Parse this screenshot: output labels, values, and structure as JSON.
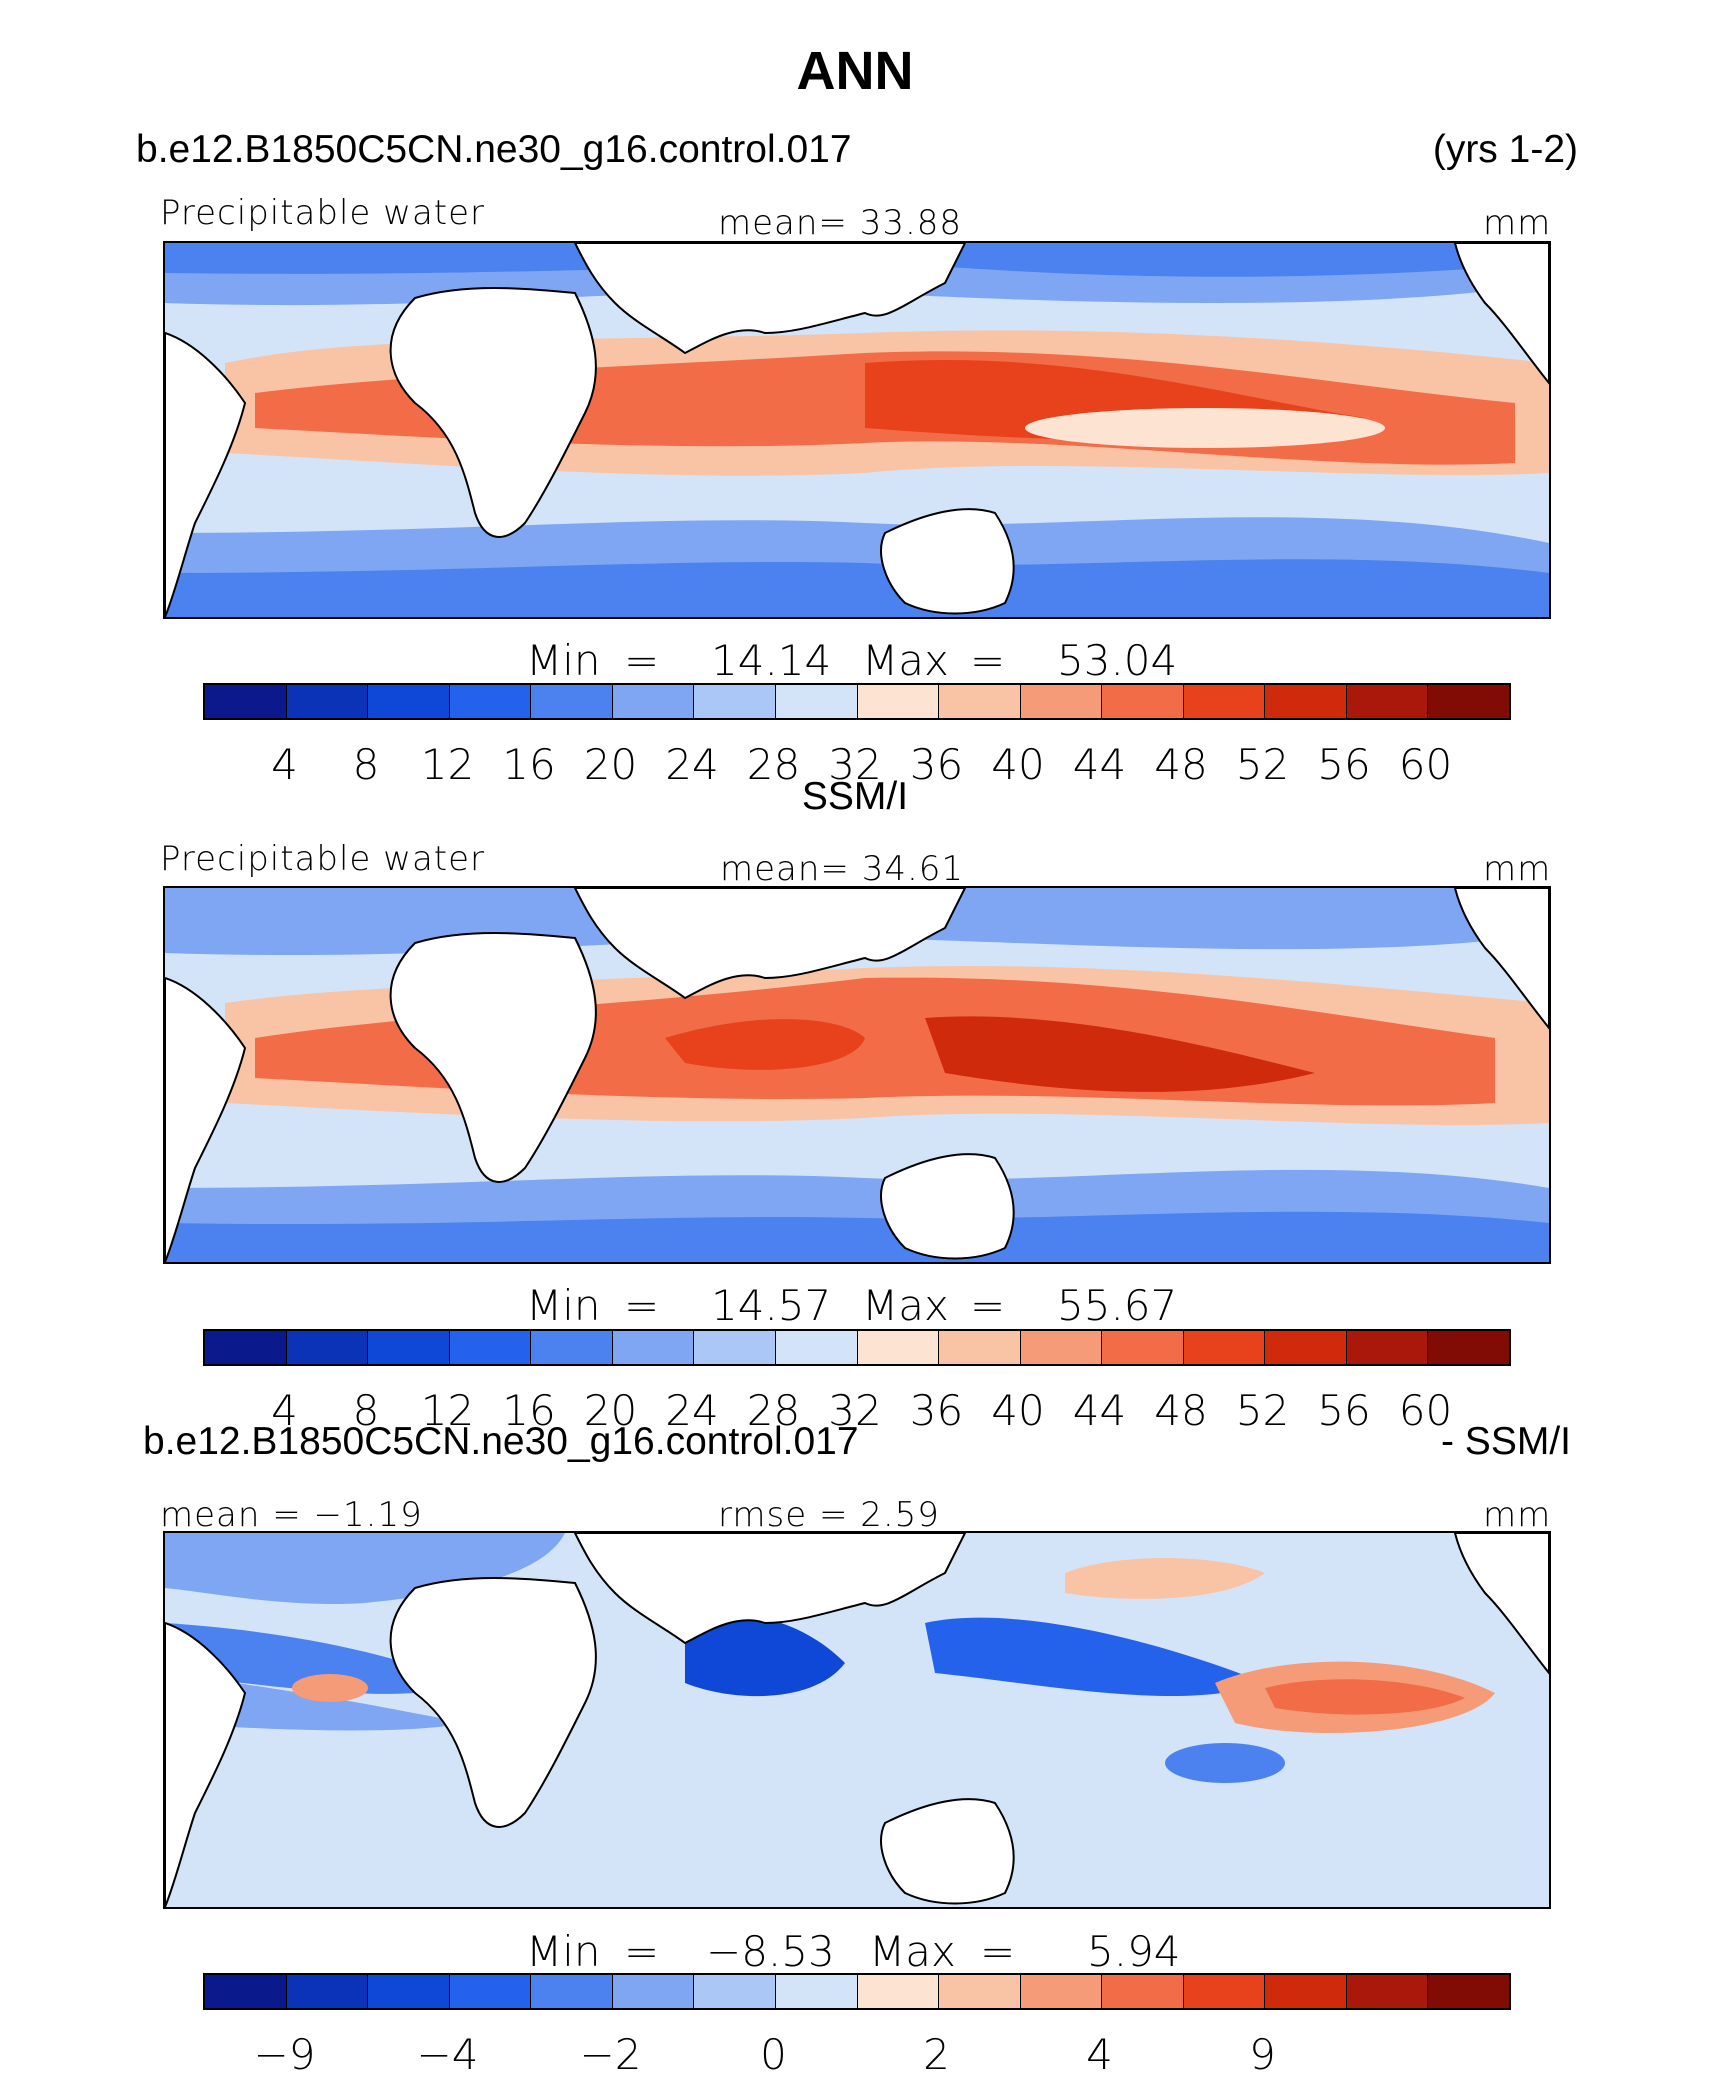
{
  "title": "ANN",
  "panels": [
    {
      "case_name": "b.e12.B1850C5CN.ne30_g16.control.017",
      "years": "(yrs 1-2)",
      "left_label": "Precipitable water",
      "center_label": "mean=  33.88",
      "units": "mm",
      "min_label": "Min",
      "min_value": "14.14",
      "max_label": "Max",
      "max_value": "53.04",
      "min_value_num": 14.14,
      "max_value_num": 53.04,
      "colorbar_ticks": [
        "4",
        "8",
        "12",
        "16",
        "20",
        "24",
        "28",
        "32",
        "36",
        "40",
        "44",
        "48",
        "52",
        "56",
        "60"
      ]
    },
    {
      "case_name": "SSM/I",
      "left_label": "Precipitable water",
      "center_label": "mean=  34.61",
      "units": "mm",
      "min_label": "Min",
      "min_value": "14.57",
      "max_label": "Max",
      "max_value": "55.67",
      "min_value_num": 14.57,
      "max_value_num": 55.67,
      "colorbar_ticks": [
        "4",
        "8",
        "12",
        "16",
        "20",
        "24",
        "28",
        "32",
        "36",
        "40",
        "44",
        "48",
        "52",
        "56",
        "60"
      ]
    },
    {
      "case_name": "b.e12.B1850C5CN.ne30_g16.control.017",
      "case_suffix": "- SSM/I",
      "left_label": "mean =  −1.19",
      "center_label": "rmse =   2.59",
      "units": "mm",
      "min_label": "Min",
      "min_value": "−8.53",
      "max_label": "Max",
      "max_value": "5.94",
      "min_value_num": -8.53,
      "max_value_num": 5.94,
      "colorbar_ticks": [
        "−9",
        "",
        "−4",
        "",
        "−2",
        "",
        "0",
        "",
        "2",
        "",
        "4",
        "",
        "9"
      ]
    }
  ],
  "colors": {
    "palette": [
      "#0a1a8c",
      "#0b33b8",
      "#0f48d6",
      "#2562ec",
      "#4b82ef",
      "#7ea6f2",
      "#aac7f5",
      "#d4e4f8",
      "#fde4d2",
      "#f9c4a6",
      "#f69b78",
      "#f26c48",
      "#e8421d",
      "#cf2a0c",
      "#a9180a",
      "#800c05"
    ],
    "land": "#ffffff",
    "coast": "#000000"
  }
}
